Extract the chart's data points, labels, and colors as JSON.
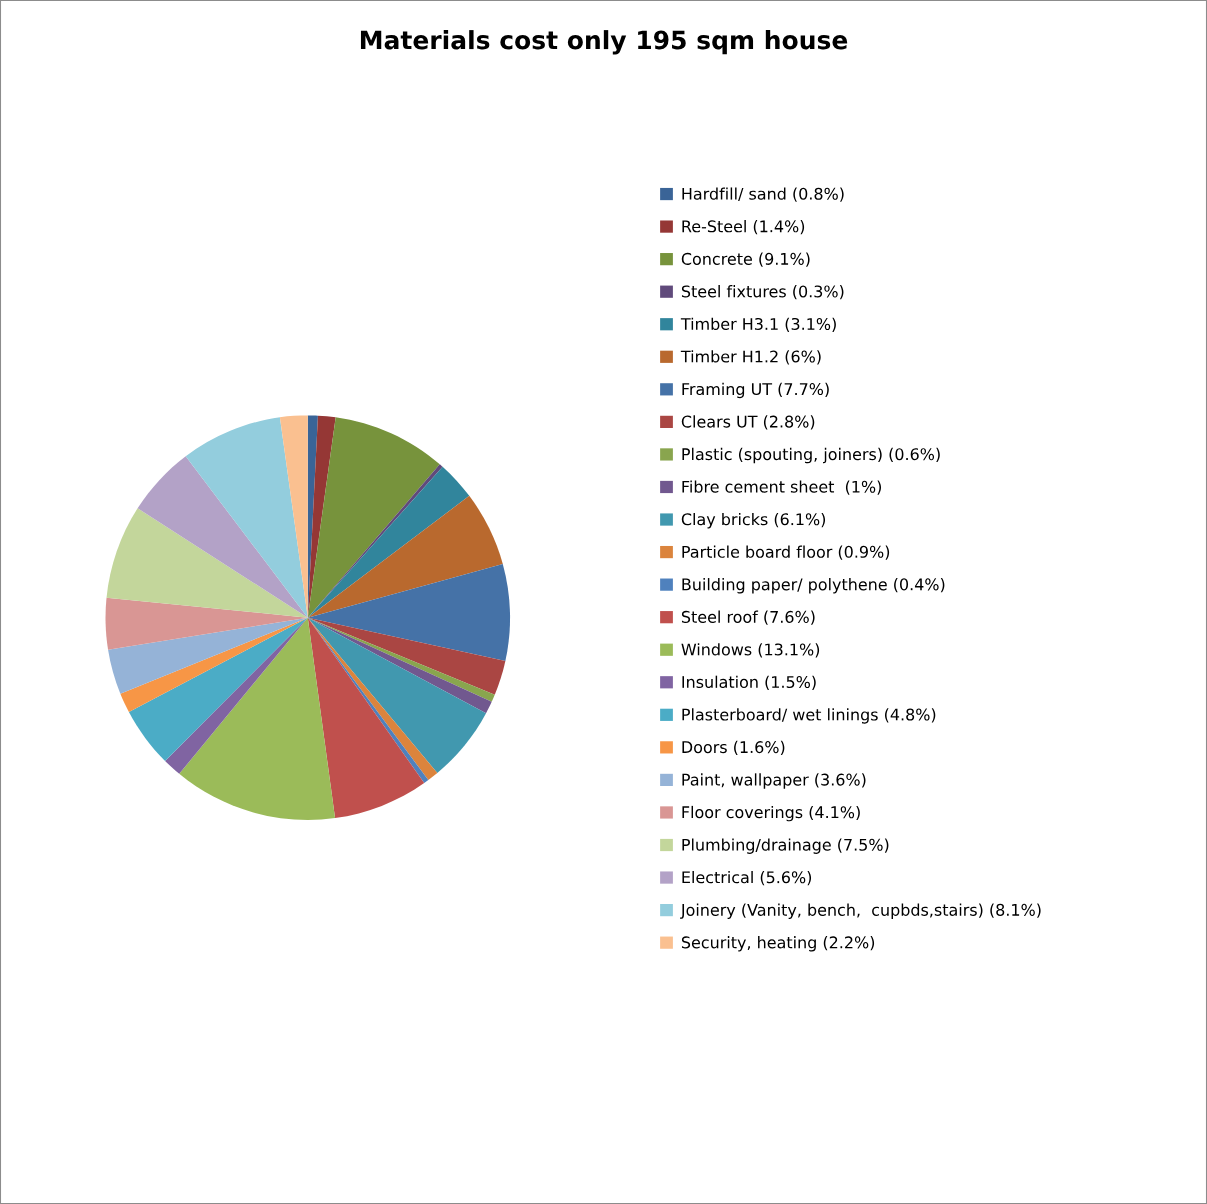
{
  "chart_data": {
    "type": "pie",
    "title": "Materials cost only 195 sqm house",
    "legend": "right",
    "categories": [
      "Hardfill/ sand (0.8%)",
      "Re-Steel (1.4%)",
      "Concrete (9.1%)",
      "Steel fixtures (0.3%)",
      "Timber H3.1 (3.1%)",
      "Timber H1.2 (6%)",
      "Framing UT (7.7%)",
      "Clears UT (2.8%)",
      "Plastic (spouting, joiners) (0.6%)",
      "Fibre cement sheet  (1%)",
      "Clay bricks (6.1%)",
      "Particle board floor (0.9%)",
      "Building paper/ polythene (0.4%)",
      "Steel roof (7.6%)",
      "Windows (13.1%)",
      "Insulation (1.5%)",
      "Plasterboard/ wet linings (4.8%)",
      "Doors (1.6%)",
      "Paint, wallpaper (3.6%)",
      "Floor coverings (4.1%)",
      "Plumbing/drainage (7.5%)",
      "Electrical (5.6%)",
      "Joinery (Vanity, bench,  cupbds,stairs) (8.1%)",
      "Security, heating (2.2%)"
    ],
    "values": [
      0.8,
      1.4,
      9.1,
      0.3,
      3.1,
      6,
      7.7,
      2.8,
      0.6,
      1,
      6.1,
      0.9,
      0.4,
      7.6,
      13.1,
      1.5,
      4.8,
      1.6,
      3.6,
      4.1,
      7.5,
      5.6,
      8.1,
      2.2
    ],
    "colors": [
      "#3a6497",
      "#953735",
      "#77933c",
      "#604a7b",
      "#31859c",
      "#b9692e",
      "#4572a7",
      "#aa4643",
      "#89a54e",
      "#71588f",
      "#4198af",
      "#db843d",
      "#4f81bd",
      "#c0504d",
      "#9bbb59",
      "#8064a2",
      "#4bacc6",
      "#f79646",
      "#95b3d7",
      "#d99694",
      "#c3d69b",
      "#b3a2c7",
      "#93cddd",
      "#fac090"
    ]
  }
}
